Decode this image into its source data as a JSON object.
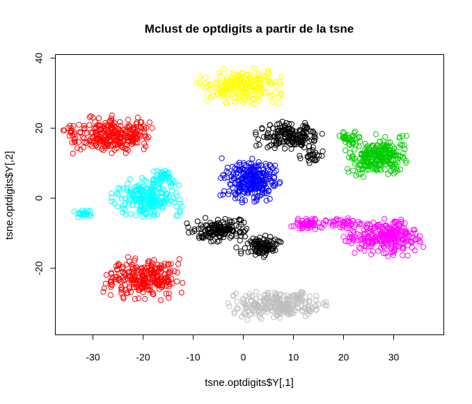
{
  "chart_data": {
    "type": "scatter",
    "title": "Mclust de optdigits a partir de la tsne",
    "xlabel": "tsne.optdigits$Y[,1]",
    "ylabel": "tsne.optdigits$Y[,2]",
    "xlim": [
      -37.5,
      40
    ],
    "ylim": [
      -39,
      41
    ],
    "xticks": [
      -30,
      -20,
      -10,
      0,
      10,
      20,
      30
    ],
    "yticks": [
      -20,
      0,
      20,
      40
    ],
    "grid": false,
    "clusters": [
      {
        "color": "#ff0000",
        "blobs": [
          {
            "cx": -26,
            "cy": 18,
            "rx": 7.5,
            "ry": 5,
            "n": 260
          },
          {
            "cx": -34.5,
            "cy": 19.5,
            "rx": 1.3,
            "ry": 1.5,
            "n": 12
          }
        ]
      },
      {
        "color": "#ff0000",
        "blobs": [
          {
            "cx": -20,
            "cy": -23,
            "rx": 7,
            "ry": 5.5,
            "n": 260
          }
        ]
      },
      {
        "color": "#00ffff",
        "blobs": [
          {
            "cx": -19.5,
            "cy": 0,
            "rx": 6.5,
            "ry": 5,
            "n": 230
          },
          {
            "cx": -16,
            "cy": 6,
            "rx": 3,
            "ry": 2,
            "n": 40
          },
          {
            "cx": -31.5,
            "cy": -4.5,
            "rx": 2,
            "ry": 1.2,
            "n": 22
          }
        ]
      },
      {
        "color": "#ffff00",
        "blobs": [
          {
            "cx": -1,
            "cy": 32,
            "rx": 8,
            "ry": 4.5,
            "n": 230
          }
        ]
      },
      {
        "color": "#000000",
        "blobs": [
          {
            "cx": 9,
            "cy": 18,
            "rx": 6,
            "ry": 3.5,
            "n": 170
          },
          {
            "cx": 14,
            "cy": 12,
            "rx": 2.5,
            "ry": 2.5,
            "n": 25
          }
        ]
      },
      {
        "color": "#000000",
        "blobs": [
          {
            "cx": -5,
            "cy": -9,
            "rx": 5.5,
            "ry": 3,
            "n": 150
          },
          {
            "cx": 3,
            "cy": -14,
            "rx": 4,
            "ry": 3,
            "n": 100
          }
        ]
      },
      {
        "color": "#0000ff",
        "blobs": [
          {
            "cx": 1.5,
            "cy": 5,
            "rx": 5.5,
            "ry": 6,
            "n": 260
          }
        ]
      },
      {
        "color": "#00cd00",
        "blobs": [
          {
            "cx": 27,
            "cy": 12,
            "rx": 6,
            "ry": 5.5,
            "n": 260
          },
          {
            "cx": 21,
            "cy": 17,
            "rx": 2,
            "ry": 2,
            "n": 30
          }
        ]
      },
      {
        "color": "#ff00ff",
        "blobs": [
          {
            "cx": 28,
            "cy": -11,
            "rx": 7,
            "ry": 5,
            "n": 260
          },
          {
            "cx": 13.5,
            "cy": -7.5,
            "rx": 4,
            "ry": 1.5,
            "n": 60
          },
          {
            "cx": 20.5,
            "cy": -7,
            "rx": 2.5,
            "ry": 1.5,
            "n": 30
          }
        ]
      },
      {
        "color": "#bebebe",
        "blobs": [
          {
            "cx": 7,
            "cy": -30.5,
            "rx": 9,
            "ry": 4,
            "n": 260
          }
        ]
      }
    ]
  }
}
